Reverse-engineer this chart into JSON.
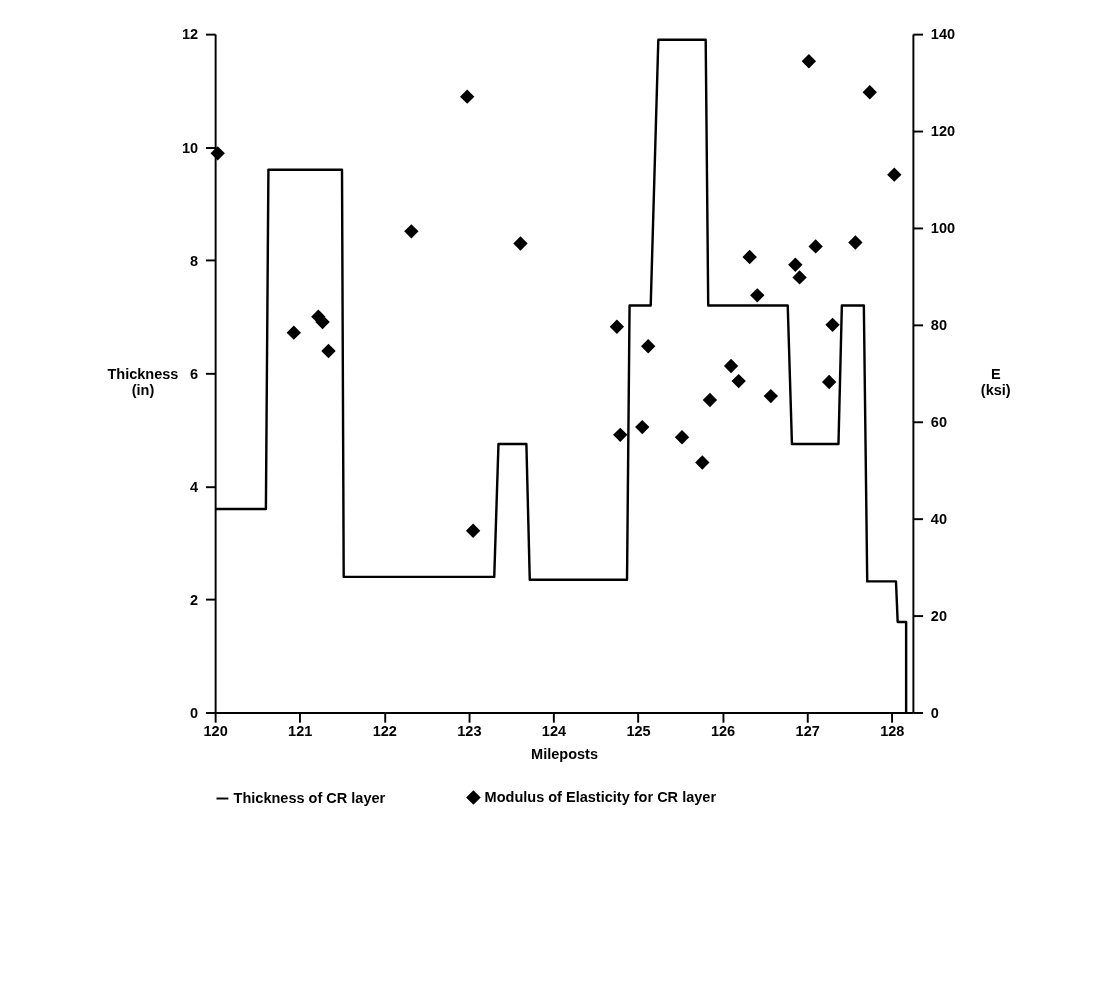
{
  "chart_data": {
    "type": "line",
    "xlabel": "Mileposts",
    "ylabel": "Thickness\n(in)",
    "y2label": "E\n(ksi)",
    "xlim": [
      120,
      128.25
    ],
    "xticks": [
      120,
      121,
      122,
      123,
      124,
      125,
      126,
      127,
      128
    ],
    "ylim": [
      0,
      12
    ],
    "yticks": [
      0,
      2,
      4,
      6,
      8,
      10,
      12
    ],
    "y2lim": [
      0,
      140
    ],
    "y2ticks": [
      0,
      20,
      40,
      60,
      80,
      100,
      120,
      140
    ],
    "grid": false,
    "legend": "bottom",
    "line_style": "solid",
    "series": [
      {
        "name": "Thickness of CR layer",
        "axis": "y",
        "marker": "none",
        "color": "#000000",
        "x": [
          120,
          120.6,
          120.63,
          121.5,
          121.52,
          123.3,
          123.35,
          123.68,
          123.72,
          124.87,
          124.9,
          125.15,
          125.24,
          125.8,
          125.83,
          126.77,
          126.82,
          127.37,
          127.41,
          127.67,
          127.71,
          128.05,
          128.07,
          128.17,
          128.17
        ],
        "values": [
          3.6,
          3.6,
          9.6,
          9.6,
          2.4,
          2.4,
          4.75,
          4.75,
          2.35,
          2.35,
          7.2,
          7.2,
          11.9,
          11.9,
          7.2,
          7.2,
          4.75,
          4.75,
          7.2,
          7.2,
          2.32,
          2.32,
          1.6,
          1.6,
          0
        ]
      },
      {
        "name": "Modulus  of Elasticity for CR layer",
        "type": "scatter",
        "marker": "diamond",
        "axis": "y2",
        "color": "#000000",
        "x": [
          120.03,
          120.93,
          121.22,
          121.27,
          121.34,
          122.32,
          122.98,
          123.05,
          123.61,
          124.75,
          124.79,
          125.05,
          125.12,
          125.52,
          125.76,
          125.85,
          126.1,
          126.19,
          126.32,
          126.41,
          126.57,
          126.86,
          126.91,
          127.02,
          127.1,
          127.26,
          127.3,
          127.57,
          127.74,
          128.03
        ],
        "values": [
          115.4,
          78.4,
          81.7,
          80.6,
          74.6,
          99.3,
          127.1,
          37.5,
          96.8,
          79.6,
          57.3,
          58.9,
          75.6,
          56.8,
          51.6,
          64.5,
          71.5,
          68.4,
          94.0,
          86.1,
          65.3,
          92.4,
          89.8,
          134.4,
          96.2,
          68.2,
          80.0,
          97.0,
          128.0,
          111.0
        ]
      }
    ]
  }
}
